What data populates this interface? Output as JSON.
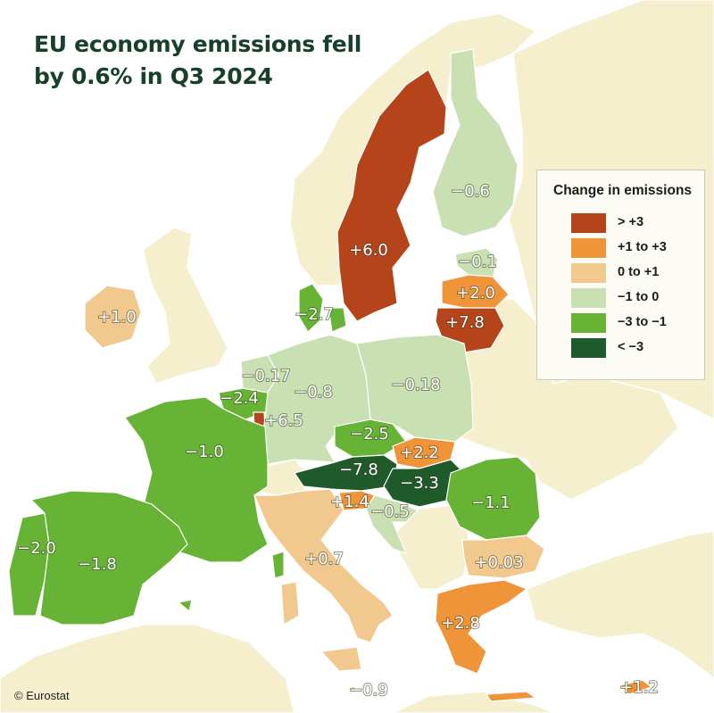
{
  "title": {
    "line1": "EU economy emissions fell",
    "line2": "by 0.6% in Q3 2024"
  },
  "legend": {
    "title": "Change in emissions",
    "items": [
      {
        "label": "> +3",
        "color": "#b5441b"
      },
      {
        "label": "+1 to +3",
        "color": "#f0943a"
      },
      {
        "label": "0 to +1",
        "color": "#f1c98e"
      },
      {
        "label": "−1 to 0",
        "color": "#c8e0b2"
      },
      {
        "label": "−3 to −1",
        "color": "#66b336"
      },
      {
        "label": "< −3",
        "color": "#1f5a2b"
      }
    ]
  },
  "colors": {
    "sea": "#ffffff",
    "non_eu_land": "#f5efcd",
    "borders": "#ffffff",
    "title": "#17402a"
  },
  "countries": [
    {
      "name": "Sweden",
      "label": "+6.0",
      "class": "> +3"
    },
    {
      "name": "Finland",
      "label": "−0.6",
      "class": "−1 to 0"
    },
    {
      "name": "Estonia",
      "label": "−0.1",
      "class": "−1 to 0"
    },
    {
      "name": "Latvia",
      "label": "+2.0",
      "class": "+1 to +3"
    },
    {
      "name": "Lithuania",
      "label": "+7.8",
      "class": "> +3"
    },
    {
      "name": "Ireland",
      "label": "+1.0",
      "class": "0 to +1"
    },
    {
      "name": "Denmark",
      "label": "−2.7",
      "class": "−3 to −1"
    },
    {
      "name": "Netherlands",
      "label": "−0.17",
      "class": "−1 to 0"
    },
    {
      "name": "Belgium",
      "label": "−2.4",
      "class": "−3 to −1"
    },
    {
      "name": "Luxembourg",
      "label": "+6.5",
      "class": "> +3"
    },
    {
      "name": "Germany",
      "label": "−0.8",
      "class": "−1 to 0"
    },
    {
      "name": "Poland",
      "label": "−0.18",
      "class": "−1 to 0"
    },
    {
      "name": "Czechia",
      "label": "−2.5",
      "class": "−3 to −1"
    },
    {
      "name": "Slovakia",
      "label": "+2.2",
      "class": "+1 to +3"
    },
    {
      "name": "Austria",
      "label": "−7.8",
      "class": "< −3"
    },
    {
      "name": "Hungary",
      "label": "−3.3",
      "class": "< −3"
    },
    {
      "name": "Slovenia",
      "label": "+1.4",
      "class": "+1 to +3"
    },
    {
      "name": "Croatia",
      "label": "−0.5",
      "class": "−1 to 0"
    },
    {
      "name": "Romania",
      "label": "−1.1",
      "class": "−3 to −1"
    },
    {
      "name": "Bulgaria",
      "label": "+0.03",
      "class": "0 to +1"
    },
    {
      "name": "Greece",
      "label": "+2.8",
      "class": "+1 to +3"
    },
    {
      "name": "France",
      "label": "−1.0",
      "class": "−3 to −1"
    },
    {
      "name": "Portugal",
      "label": "−2.0",
      "class": "−3 to −1"
    },
    {
      "name": "Spain",
      "label": "−1.8",
      "class": "−3 to −1"
    },
    {
      "name": "Italy",
      "label": "+0.7",
      "class": "0 to +1"
    },
    {
      "name": "Malta",
      "label": "−0.9",
      "class": "−1 to 0"
    },
    {
      "name": "Cyprus",
      "label": "+1.2",
      "class": "+1 to +3"
    }
  ],
  "copyright": "© Eurostat"
}
